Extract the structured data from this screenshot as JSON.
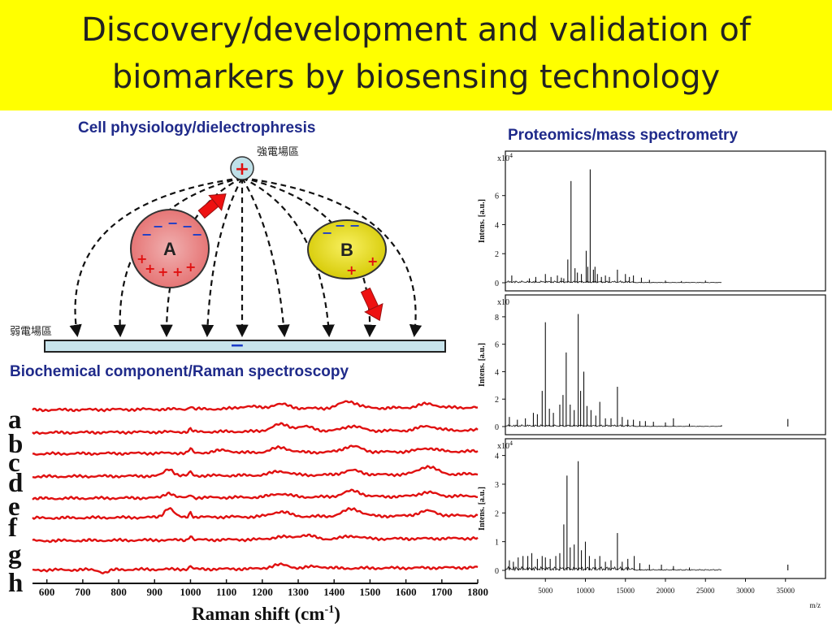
{
  "slide": {
    "title_line1": "Discovery/development and validation of",
    "title_line2": "biomarkers by biosensing technology"
  },
  "dep_panel": {
    "heading": "Cell physiology/dielectrophresis",
    "strong_field_label": "強電場區",
    "weak_field_label": "弱電場區",
    "cell_a_label": "A",
    "cell_b_label": "B",
    "electrode_top_sign": "+",
    "electrode_bottom_sign": "−",
    "colors": {
      "cell_a": "#e87a7a",
      "cell_b": "#e8e000",
      "electrode_top": "#bfe0e8",
      "arrow": "#ee1111"
    }
  },
  "ms_panel": {
    "heading": "Proteomics/mass spectrometry",
    "xlabel": "m/z",
    "ylabel": "Intens. [a.u.]"
  },
  "raman_panel": {
    "heading": "Biochemical component/Raman spectroscopy",
    "xlabel_main": "Raman shift (cm",
    "xlabel_sup": "-1",
    "xlabel_close": ")"
  },
  "chart_data": [
    {
      "type": "line",
      "id": "raman",
      "xlabel": "Raman shift (cm-1)",
      "xlim": [
        560,
        1800
      ],
      "xticks": [
        600,
        700,
        800,
        900,
        1000,
        1100,
        1200,
        1300,
        1400,
        1500,
        1600,
        1700,
        1800
      ],
      "line_color": "#e01010",
      "series": [
        {
          "name": "a",
          "peaks": [
            [
              1000,
              0.6
            ],
            [
              1160,
              0.5
            ],
            [
              1250,
              0.9
            ],
            [
              1440,
              1.4
            ],
            [
              1660,
              0.8
            ]
          ]
        },
        {
          "name": "b",
          "peaks": [
            [
              1000,
              0.6
            ],
            [
              1250,
              1.4
            ],
            [
              1320,
              0.9
            ],
            [
              1450,
              1.0
            ],
            [
              1660,
              0.9
            ]
          ]
        },
        {
          "name": "c",
          "peaks": [
            [
              1000,
              0.9
            ],
            [
              1090,
              0.5
            ],
            [
              1250,
              1.0
            ],
            [
              1450,
              1.2
            ],
            [
              1660,
              0.7
            ]
          ]
        },
        {
          "name": "d",
          "peaks": [
            [
              940,
              1.4
            ],
            [
              1000,
              0.8
            ],
            [
              1250,
              0.8
            ],
            [
              1450,
              0.9
            ],
            [
              1660,
              1.6
            ]
          ]
        },
        {
          "name": "e",
          "peaks": [
            [
              940,
              1.0
            ],
            [
              1000,
              0.6
            ],
            [
              1250,
              0.7
            ],
            [
              1450,
              1.2
            ],
            [
              1660,
              0.8
            ]
          ]
        },
        {
          "name": "f",
          "peaks": [
            [
              940,
              1.9
            ],
            [
              1000,
              1.0
            ],
            [
              1250,
              1.0
            ],
            [
              1450,
              1.5
            ],
            [
              1660,
              1.0
            ]
          ]
        },
        {
          "name": "g",
          "peaks": [
            [
              1000,
              0.9
            ],
            [
              1250,
              0.5
            ],
            [
              1320,
              0.8
            ],
            [
              1450,
              0.6
            ]
          ]
        },
        {
          "name": "h",
          "peaks": [
            [
              760,
              -0.6
            ],
            [
              1000,
              0.6
            ],
            [
              1250,
              0.8
            ],
            [
              1350,
              0.4
            ]
          ]
        }
      ]
    },
    {
      "type": "bar",
      "id": "ms1",
      "xlim": [
        0,
        40000
      ],
      "ylim": [
        0,
        8.5
      ],
      "yticks": [
        0,
        2,
        4,
        6
      ],
      "ymultiplier": "x10^4",
      "peaks": [
        [
          800,
          0.5
        ],
        [
          3000,
          0.3
        ],
        [
          3800,
          0.4
        ],
        [
          5000,
          0.6
        ],
        [
          5700,
          0.4
        ],
        [
          6500,
          0.5
        ],
        [
          7000,
          0.35
        ],
        [
          7300,
          0.3
        ],
        [
          7800,
          1.6
        ],
        [
          8200,
          7.0
        ],
        [
          8700,
          1.0
        ],
        [
          9000,
          0.7
        ],
        [
          9500,
          0.6
        ],
        [
          10100,
          2.2
        ],
        [
          10300,
          1.1
        ],
        [
          10600,
          7.8
        ],
        [
          11000,
          0.9
        ],
        [
          11200,
          1.1
        ],
        [
          11500,
          0.6
        ],
        [
          12000,
          0.4
        ],
        [
          12500,
          0.5
        ],
        [
          13000,
          0.4
        ],
        [
          14000,
          0.9
        ],
        [
          15000,
          0.6
        ],
        [
          15500,
          0.4
        ],
        [
          16000,
          0.5
        ],
        [
          17000,
          0.35
        ],
        [
          18000,
          0.2
        ],
        [
          20000,
          0.15
        ],
        [
          22000,
          0.12
        ],
        [
          25000,
          0.15
        ]
      ]
    },
    {
      "type": "bar",
      "id": "ms2",
      "xlim": [
        0,
        40000
      ],
      "ylim": [
        0,
        9
      ],
      "yticks": [
        0,
        2,
        4,
        6,
        8
      ],
      "ymultiplier": "x10",
      "peaks": [
        [
          500,
          0.7
        ],
        [
          1500,
          0.5
        ],
        [
          2500,
          0.6
        ],
        [
          3500,
          1.0
        ],
        [
          4000,
          0.9
        ],
        [
          4600,
          2.6
        ],
        [
          5000,
          7.6
        ],
        [
          5500,
          1.3
        ],
        [
          6000,
          1.0
        ],
        [
          6800,
          1.6
        ],
        [
          7200,
          2.3
        ],
        [
          7600,
          5.4
        ],
        [
          8100,
          1.6
        ],
        [
          8600,
          1.2
        ],
        [
          9100,
          8.2
        ],
        [
          9400,
          2.6
        ],
        [
          9800,
          4.0
        ],
        [
          10200,
          1.5
        ],
        [
          10700,
          1.2
        ],
        [
          11300,
          0.8
        ],
        [
          11800,
          1.8
        ],
        [
          12500,
          0.6
        ],
        [
          13200,
          0.6
        ],
        [
          14000,
          2.9
        ],
        [
          14600,
          0.7
        ],
        [
          15300,
          0.5
        ],
        [
          16000,
          0.5
        ],
        [
          16800,
          0.4
        ],
        [
          17500,
          0.4
        ],
        [
          18500,
          0.35
        ],
        [
          20000,
          0.3
        ],
        [
          21000,
          0.6
        ],
        [
          23000,
          0.2
        ],
        [
          27000,
          0.1
        ],
        [
          35300,
          0.55
        ]
      ]
    },
    {
      "type": "bar",
      "id": "ms3",
      "xlim": [
        0,
        40000
      ],
      "ylim": [
        0,
        4.3
      ],
      "yticks": [
        0,
        1,
        2,
        3,
        4
      ],
      "ymultiplier": "x10^4",
      "xticks": [
        5000,
        10000,
        15000,
        20000,
        25000,
        30000,
        35000
      ],
      "peaks": [
        [
          500,
          0.35
        ],
        [
          1000,
          0.3
        ],
        [
          1600,
          0.45
        ],
        [
          2200,
          0.5
        ],
        [
          2800,
          0.5
        ],
        [
          3300,
          0.6
        ],
        [
          4000,
          0.4
        ],
        [
          4600,
          0.5
        ],
        [
          5000,
          0.45
        ],
        [
          5600,
          0.4
        ],
        [
          6300,
          0.5
        ],
        [
          6800,
          0.6
        ],
        [
          7300,
          1.6
        ],
        [
          7700,
          3.3
        ],
        [
          8100,
          0.8
        ],
        [
          8600,
          0.9
        ],
        [
          9100,
          3.8
        ],
        [
          9500,
          0.7
        ],
        [
          10000,
          1.0
        ],
        [
          10500,
          0.5
        ],
        [
          11200,
          0.4
        ],
        [
          11800,
          0.5
        ],
        [
          12500,
          0.3
        ],
        [
          13200,
          0.35
        ],
        [
          14000,
          1.3
        ],
        [
          14600,
          0.3
        ],
        [
          15300,
          0.4
        ],
        [
          16100,
          0.5
        ],
        [
          16800,
          0.25
        ],
        [
          18000,
          0.2
        ],
        [
          19500,
          0.2
        ],
        [
          21000,
          0.15
        ],
        [
          23000,
          0.1
        ],
        [
          35300,
          0.2
        ]
      ]
    }
  ]
}
